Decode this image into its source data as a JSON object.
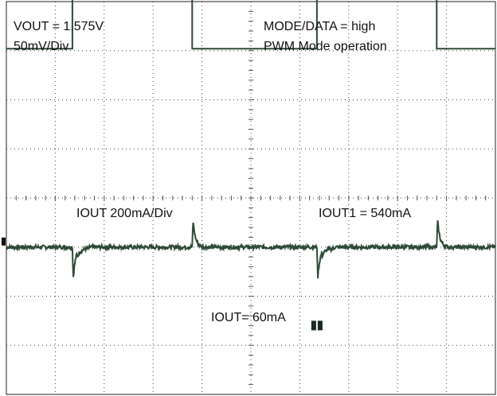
{
  "chart_data": {
    "type": "line",
    "title": "",
    "xlabel": "",
    "ylabel": "",
    "xlim": [
      0,
      10
    ],
    "grid": true,
    "annotations": {
      "vout": "VOUT = 1.575V",
      "vout_scale": "50mV/Div",
      "mode": "MODE/DATA = high",
      "operation": "PWM Mode operation",
      "iout_scale": "IOUT 200mA/Div",
      "iout1": "IOUT1 = 540mA",
      "iout0": "IOUT= 60mA"
    },
    "series": [
      {
        "unit": "mV",
        "ylim": [
          -150,
          250
        ],
        "step_times": [
          1.35,
          3.8,
          6.35,
          8.8
        ],
        "baseline": 0,
        "transient_undershoot": -45,
        "transient_overshoot": 38
      },
      {
        "unit": "mA",
        "ylim": [
          -820,
          180
        ],
        "x": [
          0,
          1.35,
          1.35,
          3.8,
          3.8,
          6.35,
          6.35,
          8.8,
          8.8,
          10
        ],
        "y": [
          60,
          60,
          540,
          540,
          60,
          60,
          540,
          540,
          60,
          60
        ]
      }
    ],
    "colors": {
      "trace": "#2e4a36",
      "grid": "#444444"
    }
  }
}
